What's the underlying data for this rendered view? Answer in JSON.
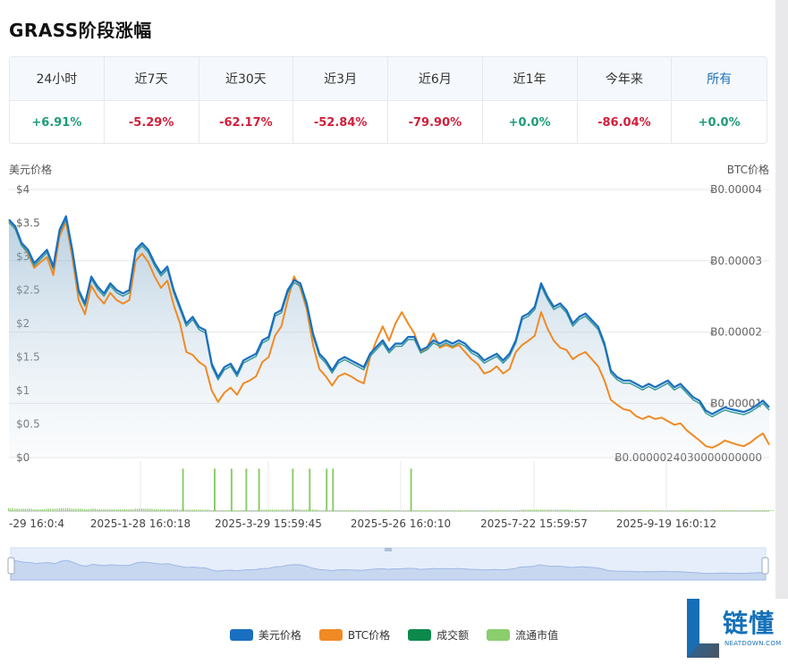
{
  "page_title": "GRASS阶段涨幅",
  "periods": [
    {
      "label": "24小时",
      "value": "+6.91%",
      "dir": "pos"
    },
    {
      "label": "近7天",
      "value": "-5.29%",
      "dir": "neg"
    },
    {
      "label": "近30天",
      "value": "-62.17%",
      "dir": "neg"
    },
    {
      "label": "近3月",
      "value": "-52.84%",
      "dir": "neg"
    },
    {
      "label": "近6月",
      "value": "-79.90%",
      "dir": "neg"
    },
    {
      "label": "近1年",
      "value": "+0.0%",
      "dir": "pos"
    },
    {
      "label": "今年来",
      "value": "-86.04%",
      "dir": "neg"
    },
    {
      "label": "所有",
      "value": "+0.0%",
      "dir": "pos",
      "active": true
    }
  ],
  "colors": {
    "usd": "#1a6fc0",
    "btc": "#f08a24",
    "volume": "#0b8a4c",
    "market_cap": "#8ccd6e",
    "pos": "#1e9b7a",
    "neg": "#d0203c"
  },
  "chart_data": {
    "type": "line",
    "ylabel_left": "美元价格",
    "ylabel_right": "BTC价格",
    "left_ticks": [
      "$0",
      "$0.5",
      "$1",
      "$1.5",
      "$2",
      "$2.5",
      "$3",
      "$3.5",
      "$4"
    ],
    "right_ticks": [
      "Ƀ0.0000024030000000000",
      "Ƀ0.00001",
      "Ƀ0.00002",
      "Ƀ0.00003",
      "Ƀ0.00004"
    ],
    "x_tick_labels": [
      "-29 16:0:4",
      "2025-1-28 16:0:18",
      "2025-3-29 15:59:45",
      "2025-5-26 16:0:10",
      "2025-7-22 15:59:57",
      "2025-9-19 16:0:12"
    ],
    "ylim_usd": [
      0,
      4
    ],
    "ylim_btc": [
      2.403e-06,
      4e-05
    ],
    "grid": true,
    "legend": "bottom",
    "x": [
      0,
      3,
      6,
      9,
      12,
      15,
      18,
      21,
      24,
      27,
      30,
      33,
      36,
      39,
      42,
      45,
      48,
      51,
      54,
      57,
      60,
      63,
      66,
      69,
      72,
      75,
      78,
      81,
      84,
      87,
      90,
      93,
      96,
      99,
      102,
      105,
      108,
      111,
      114,
      117,
      120,
      123,
      126,
      129,
      132,
      135,
      138,
      141,
      144,
      147,
      150,
      153,
      156,
      159,
      162,
      165,
      168,
      171,
      174,
      177,
      180,
      183,
      186,
      189,
      192,
      195,
      198,
      201,
      204,
      207,
      210,
      213,
      216,
      219,
      222,
      225,
      228,
      231,
      234,
      237,
      240,
      243,
      246,
      249,
      252,
      255,
      258,
      261,
      264,
      267,
      270,
      273,
      276,
      279,
      282,
      285,
      288,
      291,
      294,
      297,
      300,
      303,
      306,
      309,
      312,
      315,
      318,
      321,
      324,
      327,
      330,
      333,
      336,
      339,
      342,
      345,
      348,
      351,
      354,
      357,
      360
    ],
    "series": [
      {
        "name": "美元价格",
        "axis": "usd",
        "values": [
          3.55,
          3.45,
          3.2,
          3.1,
          2.9,
          3.0,
          3.1,
          2.85,
          3.4,
          3.6,
          3.1,
          2.5,
          2.3,
          2.7,
          2.55,
          2.45,
          2.6,
          2.5,
          2.45,
          2.5,
          3.1,
          3.2,
          3.1,
          2.9,
          2.75,
          2.85,
          2.5,
          2.25,
          2.0,
          2.1,
          1.95,
          1.9,
          1.4,
          1.2,
          1.35,
          1.4,
          1.25,
          1.45,
          1.5,
          1.55,
          1.75,
          1.8,
          2.15,
          2.2,
          2.5,
          2.65,
          2.6,
          2.3,
          1.85,
          1.55,
          1.45,
          1.3,
          1.45,
          1.5,
          1.45,
          1.4,
          1.35,
          1.55,
          1.65,
          1.75,
          1.6,
          1.7,
          1.7,
          1.8,
          1.8,
          1.6,
          1.65,
          1.75,
          1.7,
          1.75,
          1.7,
          1.75,
          1.7,
          1.6,
          1.55,
          1.45,
          1.5,
          1.55,
          1.45,
          1.55,
          1.75,
          2.1,
          2.15,
          2.25,
          2.6,
          2.4,
          2.25,
          2.3,
          2.2,
          2.0,
          2.1,
          2.15,
          2.05,
          1.95,
          1.7,
          1.3,
          1.2,
          1.15,
          1.15,
          1.1,
          1.05,
          1.1,
          1.05,
          1.1,
          1.15,
          1.05,
          1.1,
          1.0,
          0.9,
          0.85,
          0.7,
          0.65,
          0.7,
          0.75,
          0.72,
          0.7,
          0.68,
          0.72,
          0.78,
          0.85,
          0.75
        ]
      },
      {
        "name": "BTC价格",
        "axis": "btc",
        "values": [
          3.55e-05,
          3.45e-05,
          3.22e-05,
          3.1e-05,
          2.9e-05,
          2.98e-05,
          3.05e-05,
          2.8e-05,
          3.35e-05,
          3.55e-05,
          3.05e-05,
          2.45e-05,
          2.25e-05,
          2.65e-05,
          2.5e-05,
          2.4e-05,
          2.55e-05,
          2.45e-05,
          2.4e-05,
          2.45e-05,
          3e-05,
          3.1e-05,
          2.98e-05,
          2.78e-05,
          2.62e-05,
          2.72e-05,
          2.38e-05,
          2.12e-05,
          1.72e-05,
          1.68e-05,
          1.58e-05,
          1.52e-05,
          1.18e-05,
          1.02e-05,
          1.15e-05,
          1.22e-05,
          1.12e-05,
          1.28e-05,
          1.32e-05,
          1.38e-05,
          1.58e-05,
          1.65e-05,
          1.95e-05,
          2.08e-05,
          2.45e-05,
          2.78e-05,
          2.62e-05,
          2.32e-05,
          1.82e-05,
          1.48e-05,
          1.38e-05,
          1.25e-05,
          1.38e-05,
          1.42e-05,
          1.38e-05,
          1.32e-05,
          1.28e-05,
          1.65e-05,
          1.88e-05,
          2.08e-05,
          1.88e-05,
          2.12e-05,
          2.28e-05,
          2.12e-05,
          1.98e-05,
          1.72e-05,
          1.78e-05,
          1.98e-05,
          1.78e-05,
          1.82e-05,
          1.78e-05,
          1.82e-05,
          1.72e-05,
          1.62e-05,
          1.55e-05,
          1.42e-05,
          1.45e-05,
          1.52e-05,
          1.42e-05,
          1.48e-05,
          1.72e-05,
          1.82e-05,
          1.88e-05,
          1.95e-05,
          2.28e-05,
          2.05e-05,
          1.88e-05,
          1.78e-05,
          1.75e-05,
          1.62e-05,
          1.68e-05,
          1.72e-05,
          1.62e-05,
          1.52e-05,
          1.32e-05,
          1.05e-05,
          9.8e-06,
          9.2e-06,
          9e-06,
          8.2e-06,
          7.8e-06,
          8.2e-06,
          7.8e-06,
          8e-06,
          7.5e-06,
          7e-06,
          7.2e-06,
          6.2e-06,
          5.5e-06,
          4.8e-06,
          4e-06,
          3.8e-06,
          4.2e-06,
          4.8e-06,
          4.5e-06,
          4.2e-06,
          4e-06,
          4.5e-06,
          5.2e-06,
          5.8e-06,
          4.2e-06
        ]
      }
    ],
    "bar_series": [
      {
        "name": "成交额",
        "values": []
      },
      {
        "name": "流通市值",
        "values": [
          0.06,
          0.05,
          0.05,
          0.05,
          0.04,
          0.04,
          0.05,
          0.05,
          0.06,
          0.06,
          0.05,
          0.05,
          0.04,
          0.05,
          0.04,
          0.04,
          0.04,
          0.04,
          0.04,
          0.04,
          0.05,
          0.05,
          0.05,
          0.04,
          0.04,
          0.04,
          0.04,
          0.03,
          0.03,
          0.03,
          0.03,
          0.03,
          0.02,
          0.02,
          0.02,
          0.02,
          0.02,
          0.02,
          0.02,
          0.02,
          0.03,
          0.03,
          0.03,
          0.03,
          0.03,
          0.04,
          0.03,
          0.03,
          0.03,
          0.02,
          0.02,
          0.02,
          0.02,
          0.02,
          0.02,
          0.02,
          0.02,
          0.02,
          0.02,
          0.02,
          0.02,
          0.02,
          0.02,
          0.02,
          0.02,
          0.02,
          0.02,
          0.02,
          0.02,
          0.02,
          0.02,
          0.02,
          0.02,
          0.02,
          0.02,
          0.02,
          0.02,
          0.02,
          0.02,
          0.02,
          0.02,
          0.03,
          0.03,
          0.03,
          0.03,
          0.03,
          0.03,
          0.03,
          0.03,
          0.02,
          0.02,
          0.02,
          0.02,
          0.02,
          0.02,
          0.02,
          0.02,
          0.02,
          0.02,
          0.02,
          0.02,
          0.02,
          0.02,
          0.02,
          0.02,
          0.02,
          0.02,
          0.02,
          0.02,
          0.02,
          0.02,
          0.02,
          0.02,
          0.02,
          0.02,
          0.02,
          0.02,
          0.02,
          0.02,
          0.02,
          0.02
        ]
      },
      {
        "name": "流通市值-spikes",
        "values": [
          [
            82,
            0.85
          ],
          [
            97,
            0.85
          ],
          [
            105,
            0.85
          ],
          [
            112,
            0.85
          ],
          [
            118,
            0.85
          ],
          [
            134,
            0.85
          ],
          [
            142,
            0.85
          ],
          [
            150,
            0.85
          ],
          [
            153,
            0.85
          ],
          [
            190,
            0.85
          ]
        ]
      }
    ]
  },
  "legend_items": [
    "美元价格",
    "BTC价格",
    "成交额",
    "流通市值"
  ],
  "logo": {
    "text": "链懂",
    "sub": "NEATDOWN.COM"
  }
}
